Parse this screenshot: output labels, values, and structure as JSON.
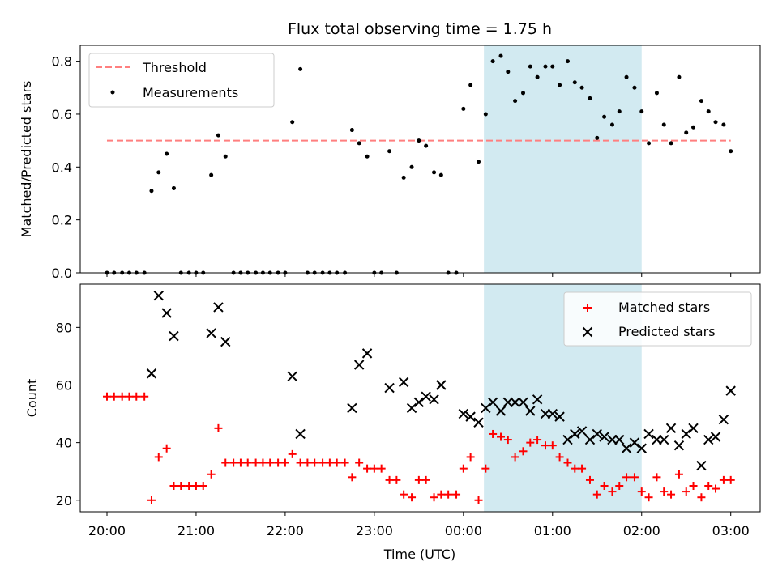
{
  "title": "Flux total observing time = 1.75 h",
  "xlabel": "Time (UTC)",
  "x_tick_labels": [
    "20:00",
    "21:00",
    "22:00",
    "23:00",
    "00:00",
    "01:00",
    "02:00",
    "03:00"
  ],
  "colors": {
    "threshold": "#ff7f7f",
    "measurements": "#000000",
    "matched": "#ff0000",
    "predicted": "#000000",
    "window": "#add8e6"
  },
  "chart_data": [
    {
      "type": "scatter",
      "ylabel": "Matched/Predicted stars",
      "y_ticks": [
        "0.0",
        "0.2",
        "0.4",
        "0.6",
        "0.8"
      ],
      "xlim": [
        -0.3,
        7.33
      ],
      "ylim": [
        0,
        0.86
      ],
      "observing_window": [
        4.23,
        6.0
      ],
      "threshold": {
        "name": "Threshold",
        "value": 0.5,
        "x": [
          0,
          7
        ]
      },
      "legend_position": "top-left",
      "series": [
        {
          "name": "Measurements",
          "points": [
            [
              0.0,
              0.0
            ],
            [
              0.08,
              0.0
            ],
            [
              0.17,
              0.0
            ],
            [
              0.25,
              0.0
            ],
            [
              0.33,
              0.0
            ],
            [
              0.42,
              0.0
            ],
            [
              0.5,
              0.31
            ],
            [
              0.58,
              0.38
            ],
            [
              0.67,
              0.45
            ],
            [
              0.75,
              0.32
            ],
            [
              0.83,
              0.0
            ],
            [
              0.92,
              0.0
            ],
            [
              1.0,
              0.0
            ],
            [
              1.08,
              0.0
            ],
            [
              1.17,
              0.37
            ],
            [
              1.25,
              0.52
            ],
            [
              1.33,
              0.44
            ],
            [
              1.42,
              0.0
            ],
            [
              1.5,
              0.0
            ],
            [
              1.58,
              0.0
            ],
            [
              1.67,
              0.0
            ],
            [
              1.75,
              0.0
            ],
            [
              1.83,
              0.0
            ],
            [
              1.92,
              0.0
            ],
            [
              2.0,
              0.0
            ],
            [
              2.08,
              0.57
            ],
            [
              2.17,
              0.77
            ],
            [
              2.25,
              0.0
            ],
            [
              2.33,
              0.0
            ],
            [
              2.42,
              0.0
            ],
            [
              2.5,
              0.0
            ],
            [
              2.58,
              0.0
            ],
            [
              2.67,
              0.0
            ],
            [
              2.75,
              0.54
            ],
            [
              2.83,
              0.49
            ],
            [
              2.92,
              0.44
            ],
            [
              3.0,
              0.0
            ],
            [
              3.08,
              0.0
            ],
            [
              3.17,
              0.46
            ],
            [
              3.25,
              0.0
            ],
            [
              3.33,
              0.36
            ],
            [
              3.42,
              0.4
            ],
            [
              3.5,
              0.5
            ],
            [
              3.58,
              0.48
            ],
            [
              3.67,
              0.38
            ],
            [
              3.75,
              0.37
            ],
            [
              3.83,
              0.0
            ],
            [
              3.92,
              0.0
            ],
            [
              4.0,
              0.62
            ],
            [
              4.08,
              0.71
            ],
            [
              4.17,
              0.42
            ],
            [
              4.25,
              0.6
            ],
            [
              4.33,
              0.8
            ],
            [
              4.42,
              0.82
            ],
            [
              4.5,
              0.76
            ],
            [
              4.58,
              0.65
            ],
            [
              4.67,
              0.68
            ],
            [
              4.75,
              0.78
            ],
            [
              4.83,
              0.74
            ],
            [
              4.92,
              0.78
            ],
            [
              5.0,
              0.78
            ],
            [
              5.08,
              0.71
            ],
            [
              5.17,
              0.8
            ],
            [
              5.25,
              0.72
            ],
            [
              5.33,
              0.7
            ],
            [
              5.42,
              0.66
            ],
            [
              5.5,
              0.51
            ],
            [
              5.58,
              0.59
            ],
            [
              5.67,
              0.56
            ],
            [
              5.75,
              0.61
            ],
            [
              5.83,
              0.74
            ],
            [
              5.92,
              0.7
            ],
            [
              6.0,
              0.61
            ],
            [
              6.08,
              0.49
            ],
            [
              6.17,
              0.68
            ],
            [
              6.25,
              0.56
            ],
            [
              6.33,
              0.49
            ],
            [
              6.42,
              0.74
            ],
            [
              6.5,
              0.53
            ],
            [
              6.58,
              0.55
            ],
            [
              6.67,
              0.65
            ],
            [
              6.75,
              0.61
            ],
            [
              6.83,
              0.57
            ],
            [
              6.92,
              0.56
            ],
            [
              7.0,
              0.46
            ]
          ]
        }
      ]
    },
    {
      "type": "scatter",
      "ylabel": "Count",
      "y_ticks": [
        "20",
        "40",
        "60",
        "80"
      ],
      "xlim": [
        -0.3,
        7.33
      ],
      "ylim": [
        16,
        95
      ],
      "observing_window": [
        4.23,
        6.0
      ],
      "legend_position": "top-right",
      "series": [
        {
          "name": "Matched stars",
          "marker": "plus",
          "points": [
            [
              0.0,
              56
            ],
            [
              0.08,
              56
            ],
            [
              0.17,
              56
            ],
            [
              0.25,
              56
            ],
            [
              0.33,
              56
            ],
            [
              0.42,
              56
            ],
            [
              0.5,
              20
            ],
            [
              0.58,
              35
            ],
            [
              0.67,
              38
            ],
            [
              0.75,
              25
            ],
            [
              0.83,
              25
            ],
            [
              0.92,
              25
            ],
            [
              1.0,
              25
            ],
            [
              1.08,
              25
            ],
            [
              1.17,
              29
            ],
            [
              1.25,
              45
            ],
            [
              1.33,
              33
            ],
            [
              1.42,
              33
            ],
            [
              1.5,
              33
            ],
            [
              1.58,
              33
            ],
            [
              1.67,
              33
            ],
            [
              1.75,
              33
            ],
            [
              1.83,
              33
            ],
            [
              1.92,
              33
            ],
            [
              2.0,
              33
            ],
            [
              2.08,
              36
            ],
            [
              2.17,
              33
            ],
            [
              2.25,
              33
            ],
            [
              2.33,
              33
            ],
            [
              2.42,
              33
            ],
            [
              2.5,
              33
            ],
            [
              2.58,
              33
            ],
            [
              2.67,
              33
            ],
            [
              2.75,
              28
            ],
            [
              2.83,
              33
            ],
            [
              2.92,
              31
            ],
            [
              3.0,
              31
            ],
            [
              3.08,
              31
            ],
            [
              3.17,
              27
            ],
            [
              3.25,
              27
            ],
            [
              3.33,
              22
            ],
            [
              3.42,
              21
            ],
            [
              3.5,
              27
            ],
            [
              3.58,
              27
            ],
            [
              3.67,
              21
            ],
            [
              3.75,
              22
            ],
            [
              3.83,
              22
            ],
            [
              3.92,
              22
            ],
            [
              4.0,
              31
            ],
            [
              4.08,
              35
            ],
            [
              4.17,
              20
            ],
            [
              4.25,
              31
            ],
            [
              4.33,
              43
            ],
            [
              4.42,
              42
            ],
            [
              4.5,
              41
            ],
            [
              4.58,
              35
            ],
            [
              4.67,
              37
            ],
            [
              4.75,
              40
            ],
            [
              4.83,
              41
            ],
            [
              4.92,
              39
            ],
            [
              5.0,
              39
            ],
            [
              5.08,
              35
            ],
            [
              5.17,
              33
            ],
            [
              5.25,
              31
            ],
            [
              5.33,
              31
            ],
            [
              5.42,
              27
            ],
            [
              5.5,
              22
            ],
            [
              5.58,
              25
            ],
            [
              5.67,
              23
            ],
            [
              5.75,
              25
            ],
            [
              5.83,
              28
            ],
            [
              5.92,
              28
            ],
            [
              6.0,
              23
            ],
            [
              6.08,
              21
            ],
            [
              6.17,
              28
            ],
            [
              6.25,
              23
            ],
            [
              6.33,
              22
            ],
            [
              6.42,
              29
            ],
            [
              6.5,
              23
            ],
            [
              6.58,
              25
            ],
            [
              6.67,
              21
            ],
            [
              6.75,
              25
            ],
            [
              6.83,
              24
            ],
            [
              6.92,
              27
            ],
            [
              7.0,
              27
            ]
          ]
        },
        {
          "name": "Predicted stars",
          "marker": "x",
          "points": [
            [
              0.5,
              64
            ],
            [
              0.58,
              91
            ],
            [
              0.67,
              85
            ],
            [
              0.75,
              77
            ],
            [
              1.17,
              78
            ],
            [
              1.25,
              87
            ],
            [
              1.33,
              75
            ],
            [
              2.08,
              63
            ],
            [
              2.17,
              43
            ],
            [
              2.75,
              52
            ],
            [
              2.83,
              67
            ],
            [
              2.92,
              71
            ],
            [
              3.17,
              59
            ],
            [
              3.33,
              61
            ],
            [
              3.42,
              52
            ],
            [
              3.5,
              54
            ],
            [
              3.58,
              56
            ],
            [
              3.67,
              55
            ],
            [
              3.75,
              60
            ],
            [
              4.0,
              50
            ],
            [
              4.08,
              49
            ],
            [
              4.17,
              47
            ],
            [
              4.25,
              52
            ],
            [
              4.33,
              54
            ],
            [
              4.42,
              51
            ],
            [
              4.5,
              54
            ],
            [
              4.58,
              54
            ],
            [
              4.67,
              54
            ],
            [
              4.75,
              51
            ],
            [
              4.83,
              55
            ],
            [
              4.92,
              50
            ],
            [
              5.0,
              50
            ],
            [
              5.08,
              49
            ],
            [
              5.17,
              41
            ],
            [
              5.25,
              43
            ],
            [
              5.33,
              44
            ],
            [
              5.42,
              41
            ],
            [
              5.5,
              43
            ],
            [
              5.58,
              42
            ],
            [
              5.67,
              41
            ],
            [
              5.75,
              41
            ],
            [
              5.83,
              38
            ],
            [
              5.92,
              40
            ],
            [
              6.0,
              38
            ],
            [
              6.08,
              43
            ],
            [
              6.17,
              41
            ],
            [
              6.25,
              41
            ],
            [
              6.33,
              45
            ],
            [
              6.42,
              39
            ],
            [
              6.5,
              43
            ],
            [
              6.58,
              45
            ],
            [
              6.67,
              32
            ],
            [
              6.75,
              41
            ],
            [
              6.83,
              42
            ],
            [
              6.92,
              48
            ],
            [
              7.0,
              58
            ]
          ]
        }
      ]
    }
  ]
}
